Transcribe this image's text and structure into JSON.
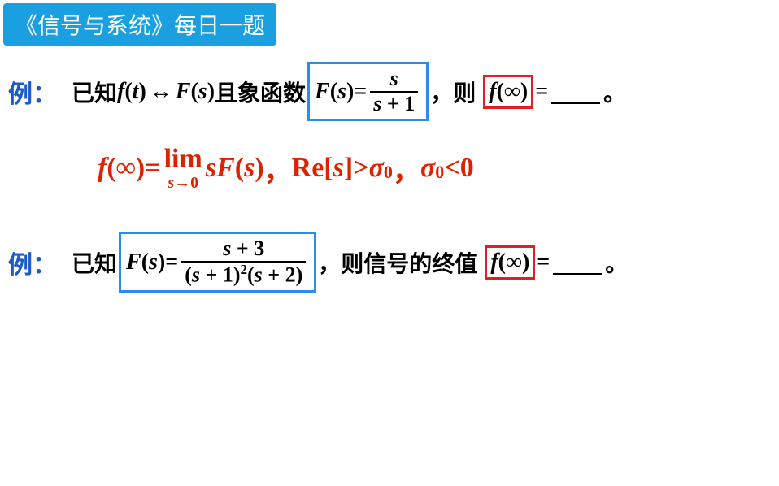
{
  "header": {
    "title": "《信号与系统》每日一题"
  },
  "colors": {
    "header_bg": "#1aa0e0",
    "header_fg": "#ffffff",
    "label_blue": "#1d5bc4",
    "box_blue": "#2a8ee6",
    "box_red": "#e02020",
    "formula_red": "#dd2200",
    "text": "#000000",
    "bg": "#ffffff"
  },
  "ex1": {
    "label": "例：",
    "pre": "已知 ",
    "ft": "f",
    "t": "t",
    "arrow": "↔",
    "Fs1": "F",
    "s1": "s",
    "mid1": "且象函数",
    "Fs2": "F",
    "s2": "s",
    "eq": " = ",
    "frac_num": "s",
    "frac_den_a": "s",
    "frac_den_plus": " + ",
    "frac_den_b": "1",
    "comma": "，",
    "then": "则",
    "finf_f": "f",
    "finf_arg": "∞",
    "eq2": " = ",
    "period": "。"
  },
  "formula": {
    "f": "f",
    "inf": "∞",
    "eq": " = ",
    "lim": "lim",
    "s": "s",
    "to": "→",
    "zero": "0",
    "sF": "sF",
    "sarg": "s",
    "comma1": "，",
    "Re": "Re",
    "sb": "s",
    "gt": " > ",
    "sigma1": "σ",
    "sub0a": "0",
    "comma2": "，",
    "sigma2": "σ",
    "sub0b": "0",
    "lt": " < ",
    "zero2": "0"
  },
  "ex2": {
    "label": "例：",
    "pre": "已知",
    "F": "F",
    "s": "s",
    "eq": " = ",
    "num_a": "s",
    "num_plus": " + ",
    "num_b": "3",
    "den_a1": "s",
    "den_p1": " + ",
    "den_b1": "1",
    "den_exp": "2",
    "den_a2": "s",
    "den_p2": " + ",
    "den_b2": "2",
    "comma": "，",
    "then": "则信号的终值",
    "finf_f": "f",
    "finf_arg": "∞",
    "eq2": " = ",
    "period": "。"
  }
}
